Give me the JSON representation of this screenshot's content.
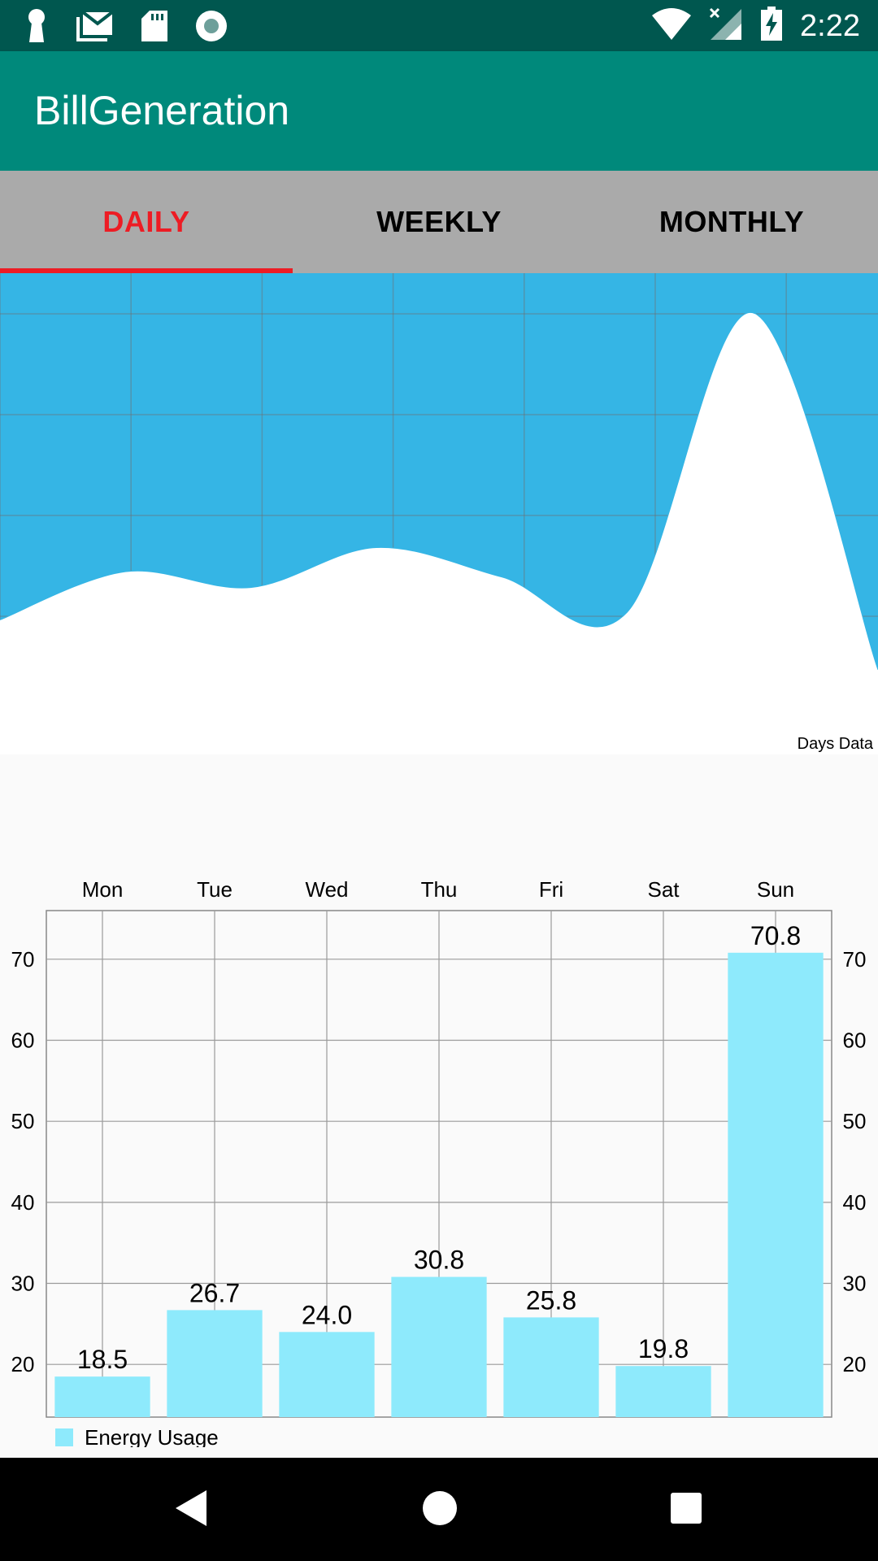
{
  "status_bar": {
    "time": "2:22",
    "left_icons": [
      "keyhole-icon",
      "gmail-icon",
      "sd-card-icon",
      "record-icon"
    ],
    "right_icons": [
      "wifi-icon",
      "signal-icon",
      "battery-charging-icon"
    ]
  },
  "app_bar": {
    "title": "BillGeneration"
  },
  "tabs": [
    {
      "label": "DAILY",
      "active": true
    },
    {
      "label": "WEEKLY",
      "active": false
    },
    {
      "label": "MONTHLY",
      "active": false
    }
  ],
  "colors": {
    "status_bar": "#00574f",
    "app_bar": "#00897b",
    "tab_bar": "#aaaaaa",
    "tab_active": "#ed1c24",
    "area_fill": "#35b5e5",
    "bar_fill": "#8eeafc"
  },
  "chart_data": [
    {
      "type": "area",
      "description_label": "Days Data",
      "x": [
        0,
        1,
        2,
        3,
        4,
        5,
        6,
        7
      ],
      "values": [
        18.5,
        26.7,
        24.0,
        30.8,
        25.8,
        19.8,
        70.8,
        10.0
      ],
      "grid": true
    },
    {
      "type": "bar",
      "categories": [
        "Mon",
        "Tue",
        "Wed",
        "Thu",
        "Fri",
        "Sat",
        "Sun"
      ],
      "series": [
        {
          "name": "Energy Usage",
          "values": [
            18.5,
            26.7,
            24.0,
            30.8,
            25.8,
            19.8,
            70.8
          ]
        }
      ],
      "value_labels": [
        "18.5",
        "26.7",
        "24.0",
        "30.8",
        "25.8",
        "19.8",
        "70.8"
      ],
      "y_ticks": [
        "20",
        "30",
        "40",
        "50",
        "60",
        "70"
      ],
      "ylim": [
        13.5,
        76
      ],
      "grid": true,
      "legend_position": "bottom-left"
    }
  ]
}
